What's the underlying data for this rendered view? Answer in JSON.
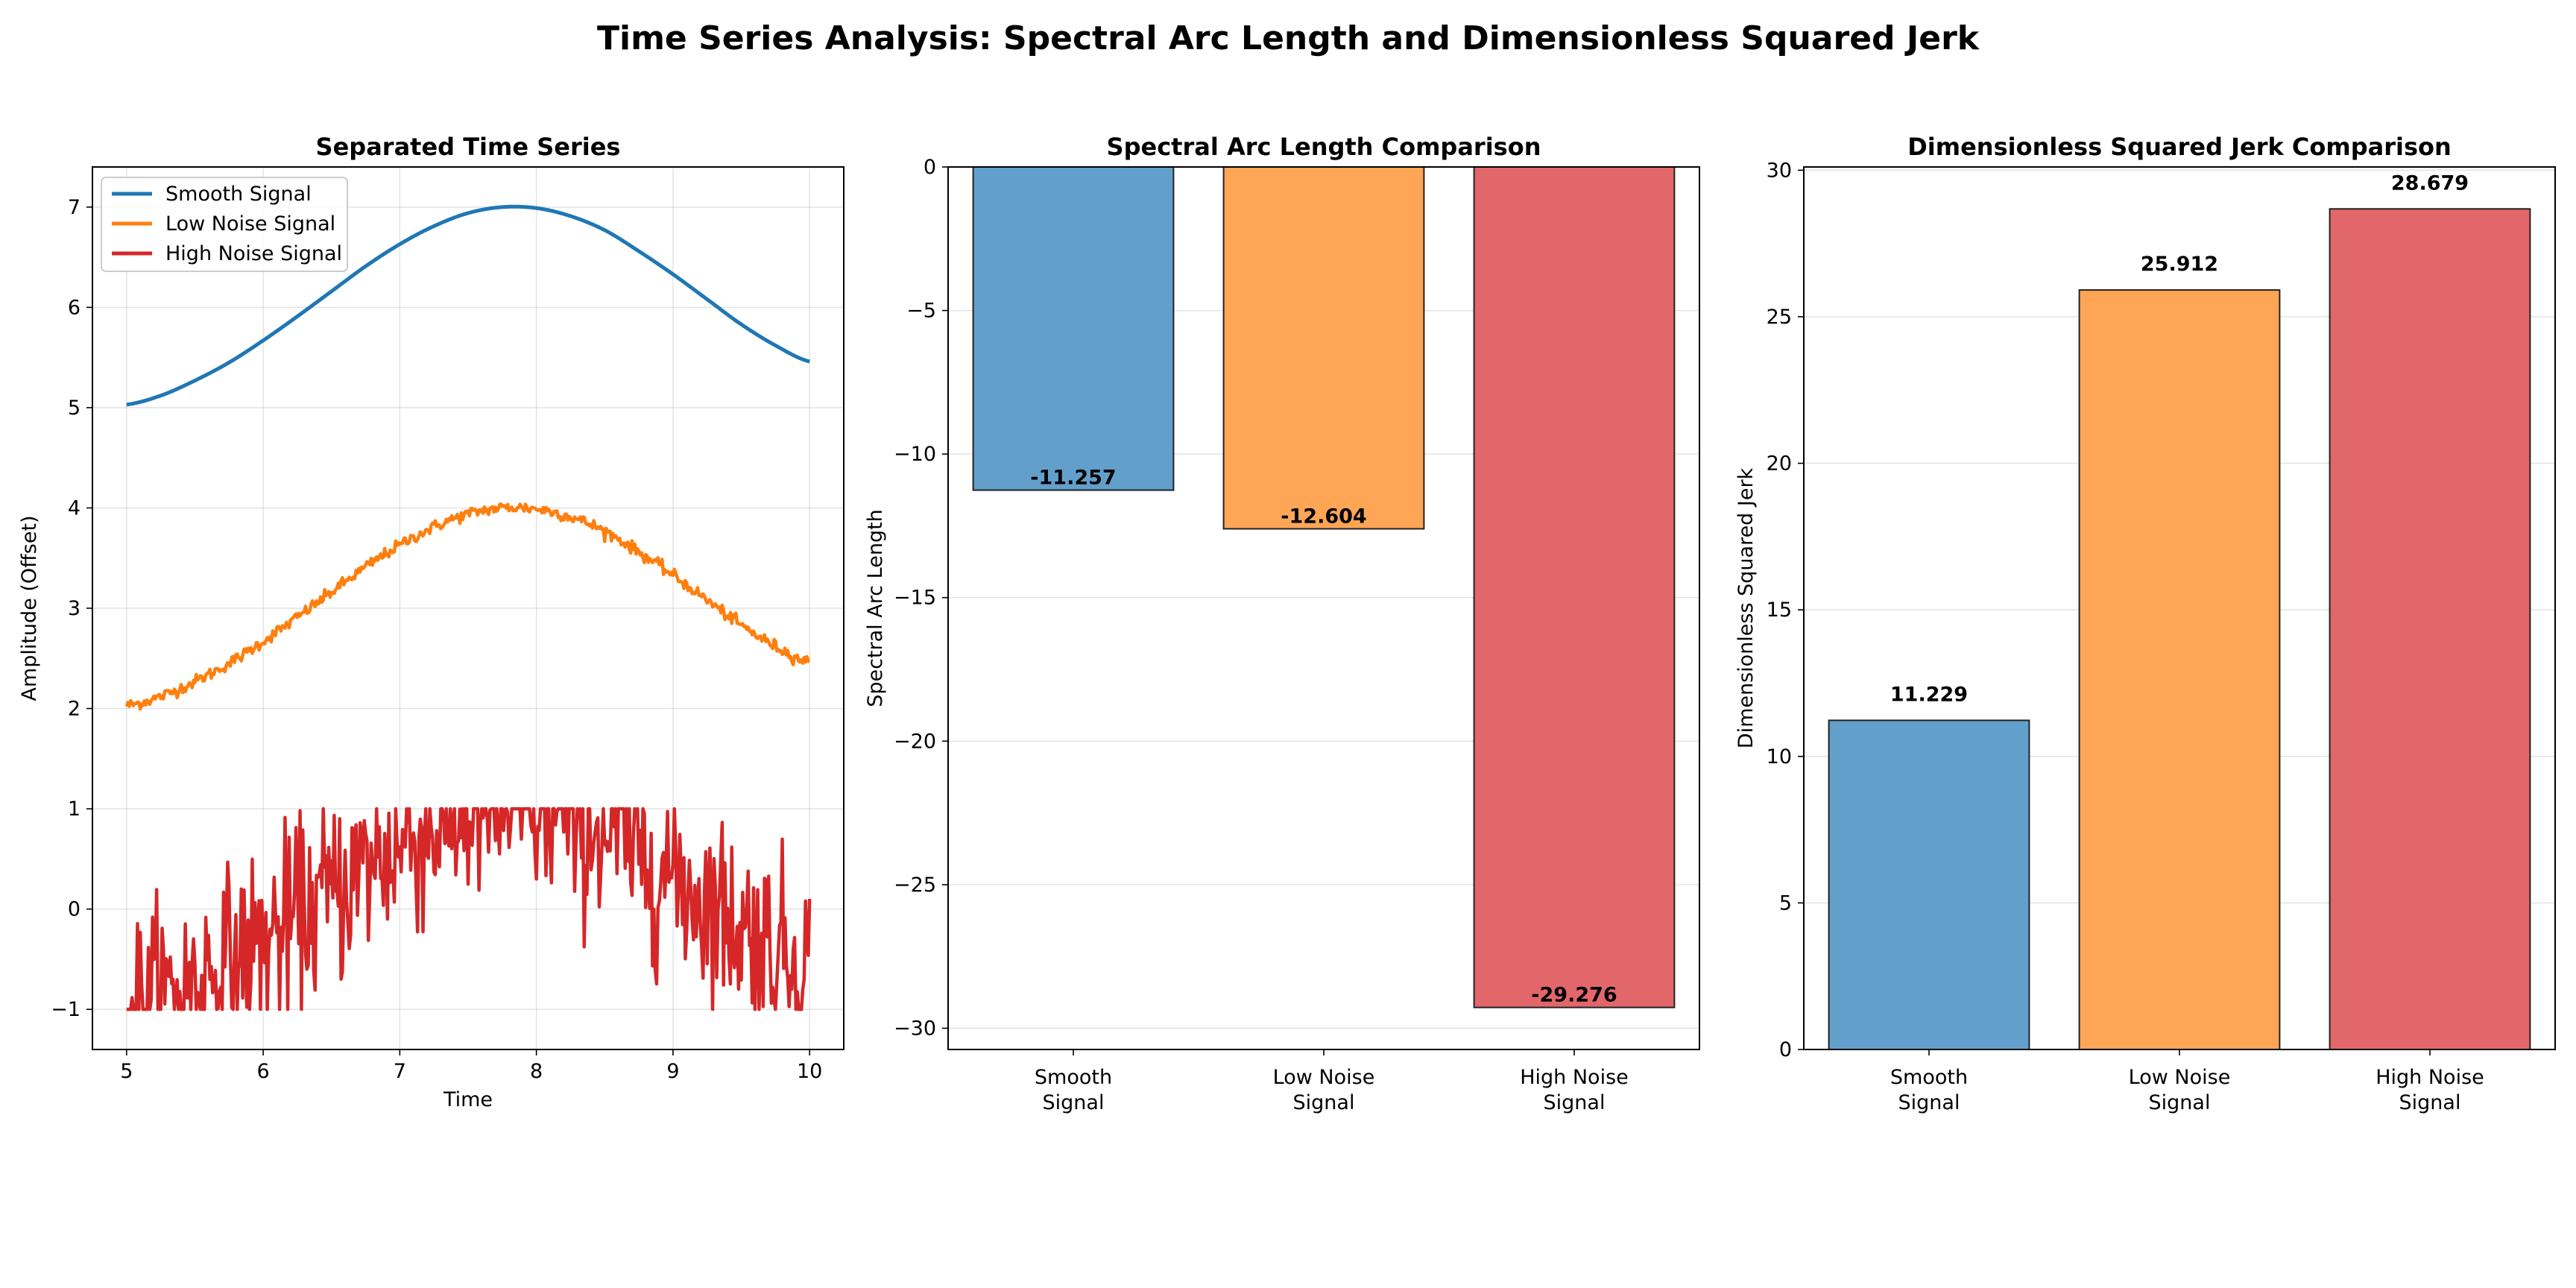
{
  "figure": {
    "title": "Time Series Analysis: Spectral Arc Length and Dimensionless Squared Jerk"
  },
  "colors": {
    "smooth": "#1f77b4",
    "low_noise": "#ff7f0e",
    "high_noise": "#d62728",
    "smooth_bar": "#62a0cb",
    "low_noise_bar": "#ffa556",
    "high_noise_bar": "#e2676a"
  },
  "chart_data": [
    {
      "type": "line",
      "title": "Separated Time Series",
      "xlabel": "Time",
      "ylabel": "Amplitude (Offset)",
      "xlim": [
        4.75,
        10.25
      ],
      "ylim": [
        -1.4,
        7.4
      ],
      "xticks": [
        "5",
        "6",
        "7",
        "8",
        "9",
        "10"
      ],
      "yticks": [
        "−1",
        "0",
        "1",
        "2",
        "3",
        "4",
        "5",
        "6",
        "7"
      ],
      "grid": true,
      "legend_position": "top-left",
      "x_start": 5,
      "x_end": 10,
      "series": [
        {
          "name": "Smooth Signal",
          "color": "#1f77b4",
          "description": "smooth sine hump, offset +6",
          "points": [
            [
              5.0,
              5.03
            ],
            [
              5.25,
              5.12
            ],
            [
              5.5,
              5.27
            ],
            [
              5.75,
              5.45
            ],
            [
              6.0,
              5.67
            ],
            [
              6.25,
              5.91
            ],
            [
              6.5,
              6.16
            ],
            [
              6.75,
              6.41
            ],
            [
              7.0,
              6.63
            ],
            [
              7.25,
              6.81
            ],
            [
              7.5,
              6.94
            ],
            [
              7.75,
              7.0
            ],
            [
              8.0,
              6.99
            ],
            [
              8.25,
              6.91
            ],
            [
              8.5,
              6.77
            ],
            [
              8.75,
              6.56
            ],
            [
              9.0,
              6.33
            ],
            [
              9.25,
              6.08
            ],
            [
              9.5,
              5.83
            ],
            [
              9.75,
              5.62
            ],
            [
              10.0,
              5.46
            ]
          ]
        },
        {
          "name": "Low Noise Signal",
          "color": "#ff7f0e",
          "description": "same shape with small noise, offset +3",
          "points": [
            [
              5.0,
              2.03
            ],
            [
              5.25,
              2.12
            ],
            [
              5.5,
              2.27
            ],
            [
              5.75,
              2.45
            ],
            [
              6.0,
              2.67
            ],
            [
              6.25,
              2.91
            ],
            [
              6.5,
              3.16
            ],
            [
              6.75,
              3.41
            ],
            [
              7.0,
              3.63
            ],
            [
              7.25,
              3.81
            ],
            [
              7.5,
              3.94
            ],
            [
              7.75,
              4.0
            ],
            [
              8.0,
              3.99
            ],
            [
              8.25,
              3.91
            ],
            [
              8.5,
              3.77
            ],
            [
              8.75,
              3.56
            ],
            [
              9.0,
              3.33
            ],
            [
              9.25,
              3.08
            ],
            [
              9.5,
              2.83
            ],
            [
              9.75,
              2.62
            ],
            [
              10.0,
              2.46
            ]
          ],
          "noise_amplitude": 0.05
        },
        {
          "name": "High Noise Signal",
          "color": "#d62728",
          "description": "heavy noise, clipped at 1, offset 0",
          "center_points": [
            [
              5.0,
              -0.97
            ],
            [
              5.25,
              -0.88
            ],
            [
              5.5,
              -0.73
            ],
            [
              5.75,
              -0.55
            ],
            [
              6.0,
              -0.33
            ],
            [
              6.25,
              -0.09
            ],
            [
              6.5,
              0.16
            ],
            [
              6.75,
              0.41
            ],
            [
              7.0,
              0.63
            ],
            [
              7.25,
              0.81
            ],
            [
              7.5,
              0.94
            ],
            [
              7.75,
              1.0
            ],
            [
              8.0,
              0.99
            ],
            [
              8.25,
              0.91
            ],
            [
              8.5,
              0.77
            ],
            [
              8.75,
              0.56
            ],
            [
              9.0,
              0.33
            ],
            [
              9.25,
              0.08
            ],
            [
              9.5,
              -0.17
            ],
            [
              9.75,
              -0.38
            ],
            [
              10.0,
              -0.54
            ]
          ],
          "noise_amplitude": 0.85,
          "clip_max": 1.0,
          "clip_min": -1.0
        }
      ]
    },
    {
      "type": "bar",
      "title": "Spectral Arc Length Comparison",
      "xlabel": "",
      "ylabel": "Spectral Arc Length",
      "categories": [
        "Smooth\nSignal",
        "Low Noise\nSignal",
        "High Noise\nSignal"
      ],
      "category_lines": [
        [
          "Smooth",
          "Signal"
        ],
        [
          "Low Noise",
          "Signal"
        ],
        [
          "High Noise",
          "Signal"
        ]
      ],
      "values": [
        -11.257,
        -12.604,
        -29.276
      ],
      "value_labels": [
        "-11.257",
        "-12.604",
        "-29.276"
      ],
      "colors": [
        "#62a0cb",
        "#ffa556",
        "#e2676a"
      ],
      "ylim": [
        -30.74,
        0
      ],
      "yticks": [
        {
          "v": 0,
          "label": "0"
        },
        {
          "v": -5,
          "label": "−5"
        },
        {
          "v": -10,
          "label": "−10"
        },
        {
          "v": -15,
          "label": "−15"
        },
        {
          "v": -20,
          "label": "−20"
        },
        {
          "v": -25,
          "label": "−25"
        },
        {
          "v": -30,
          "label": "−30"
        }
      ],
      "grid": true
    },
    {
      "type": "bar",
      "title": "Dimensionless Squared Jerk Comparison",
      "xlabel": "",
      "ylabel": "Dimensionless Squared Jerk",
      "categories": [
        "Smooth\nSignal",
        "Low Noise\nSignal",
        "High Noise\nSignal"
      ],
      "category_lines": [
        [
          "Smooth",
          "Signal"
        ],
        [
          "Low Noise",
          "Signal"
        ],
        [
          "High Noise",
          "Signal"
        ]
      ],
      "values": [
        11.229,
        25.912,
        28.679
      ],
      "value_labels": [
        "11.229",
        "25.912",
        "28.679"
      ],
      "colors": [
        "#62a0cb",
        "#ffa556",
        "#e2676a"
      ],
      "ylim": [
        0,
        30.11
      ],
      "yticks": [
        {
          "v": 0,
          "label": "0"
        },
        {
          "v": 5,
          "label": "5"
        },
        {
          "v": 10,
          "label": "10"
        },
        {
          "v": 15,
          "label": "15"
        },
        {
          "v": 20,
          "label": "20"
        },
        {
          "v": 25,
          "label": "25"
        },
        {
          "v": 30,
          "label": "30"
        }
      ],
      "grid": true
    }
  ]
}
